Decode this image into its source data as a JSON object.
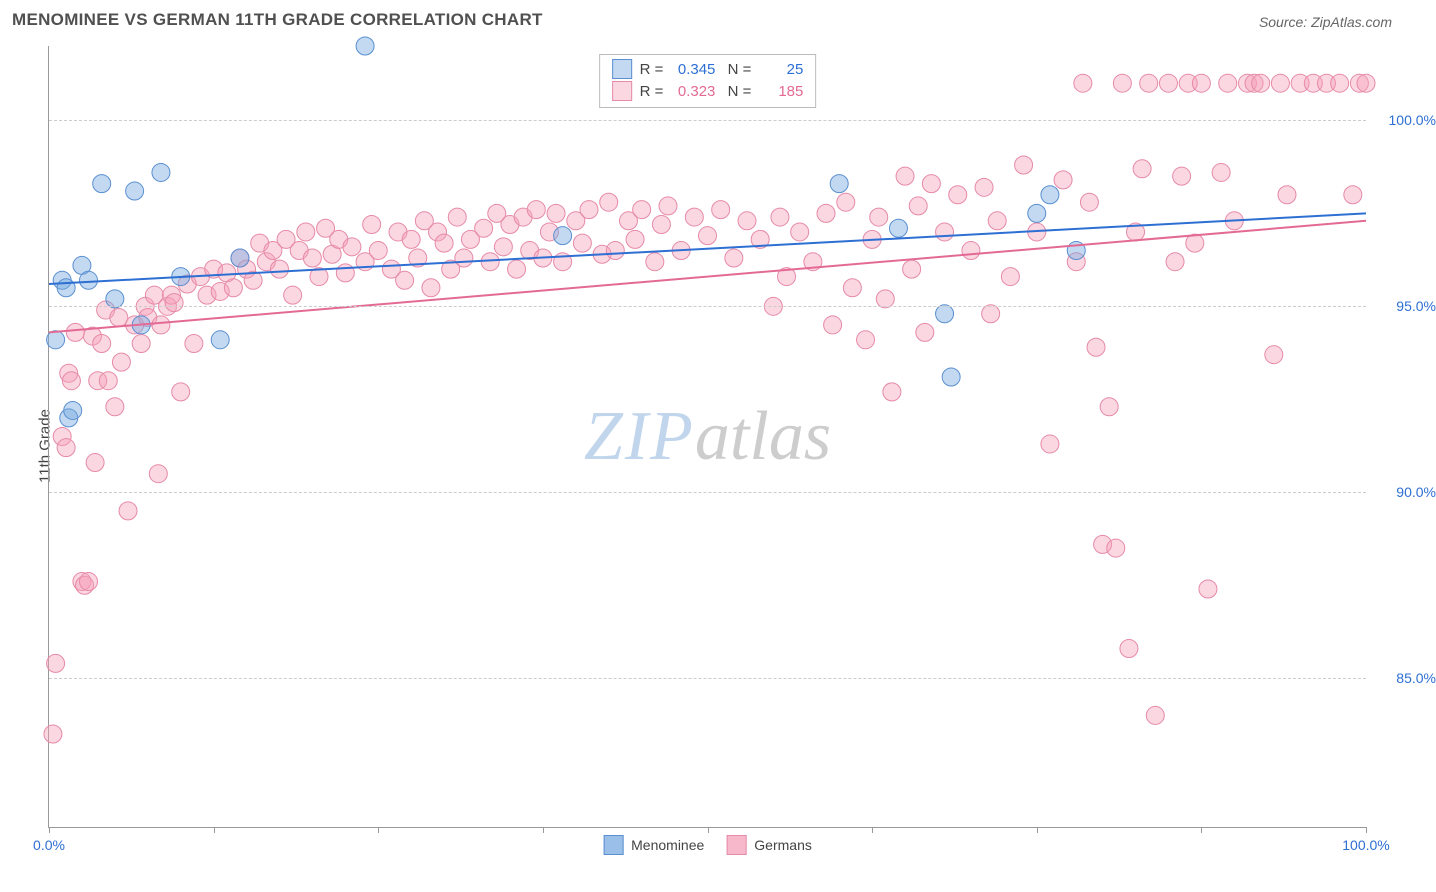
{
  "title": "MENOMINEE VS GERMAN 11TH GRADE CORRELATION CHART",
  "source_label": "Source: ZipAtlas.com",
  "y_axis_label": "11th Grade",
  "watermark": {
    "part1": "ZIP",
    "part2": "atlas"
  },
  "chart": {
    "type": "scatter",
    "background_color": "#ffffff",
    "grid_color": "#cccccc",
    "axis_color": "#999999",
    "xlim": [
      0,
      100
    ],
    "ylim": [
      81,
      102
    ],
    "x_ticks": [
      0,
      12.5,
      25,
      37.5,
      50,
      62.5,
      75,
      87.5,
      100
    ],
    "x_tick_labels": {
      "0": "0.0%",
      "100": "100.0%"
    },
    "x_label_color": "#2e6fd3",
    "y_ticks": [
      85,
      90,
      95,
      100
    ],
    "y_tick_labels": {
      "85": "85.0%",
      "90": "90.0%",
      "95": "95.0%",
      "100": "100.0%"
    },
    "y_label_color": "#2e6fd3",
    "label_fontsize": 14,
    "point_radius": 9,
    "series": [
      {
        "name": "Menominee",
        "fill": "rgba(120,170,225,0.45)",
        "stroke": "#5a8fd0",
        "trend_color": "#2e6fd3",
        "trend_width": 2,
        "R": "0.345",
        "N": "25",
        "trend": {
          "y_at_x0": 95.6,
          "y_at_x100": 97.5
        },
        "points": [
          [
            0.5,
            94.1
          ],
          [
            1.0,
            95.7
          ],
          [
            1.3,
            95.5
          ],
          [
            1.5,
            92.0
          ],
          [
            1.8,
            92.2
          ],
          [
            2.5,
            96.1
          ],
          [
            3.0,
            95.7
          ],
          [
            4.0,
            98.3
          ],
          [
            5.0,
            95.2
          ],
          [
            6.5,
            98.1
          ],
          [
            7.0,
            94.5
          ],
          [
            8.5,
            98.6
          ],
          [
            10.0,
            95.8
          ],
          [
            13.0,
            94.1
          ],
          [
            14.5,
            96.3
          ],
          [
            24.0,
            102.0
          ],
          [
            39.0,
            96.9
          ],
          [
            60.0,
            98.3
          ],
          [
            64.5,
            97.1
          ],
          [
            68.0,
            94.8
          ],
          [
            68.5,
            93.1
          ],
          [
            75.0,
            97.5
          ],
          [
            76.0,
            98.0
          ],
          [
            78.0,
            96.5
          ]
        ]
      },
      {
        "name": "Germans",
        "fill": "rgba(245,160,185,0.42)",
        "stroke": "#e68aa8",
        "trend_color": "#e36a94",
        "trend_width": 2,
        "R": "0.323",
        "N": "185",
        "trend": {
          "y_at_x0": 94.3,
          "y_at_x100": 97.3
        },
        "points": [
          [
            0.3,
            83.5
          ],
          [
            0.5,
            85.4
          ],
          [
            1.0,
            91.5
          ],
          [
            1.3,
            91.2
          ],
          [
            1.5,
            93.2
          ],
          [
            1.7,
            93.0
          ],
          [
            2.0,
            94.3
          ],
          [
            2.5,
            87.6
          ],
          [
            2.7,
            87.5
          ],
          [
            3.0,
            87.6
          ],
          [
            3.3,
            94.2
          ],
          [
            3.5,
            90.8
          ],
          [
            3.7,
            93.0
          ],
          [
            4.0,
            94.0
          ],
          [
            4.3,
            94.9
          ],
          [
            4.5,
            93.0
          ],
          [
            5.0,
            92.3
          ],
          [
            5.3,
            94.7
          ],
          [
            5.5,
            93.5
          ],
          [
            6.0,
            89.5
          ],
          [
            6.5,
            94.5
          ],
          [
            7.0,
            94.0
          ],
          [
            7.3,
            95.0
          ],
          [
            7.5,
            94.7
          ],
          [
            8.0,
            95.3
          ],
          [
            8.3,
            90.5
          ],
          [
            8.5,
            94.5
          ],
          [
            9.0,
            95.0
          ],
          [
            9.3,
            95.3
          ],
          [
            9.5,
            95.1
          ],
          [
            10.0,
            92.7
          ],
          [
            10.5,
            95.6
          ],
          [
            11.0,
            94.0
          ],
          [
            11.5,
            95.8
          ],
          [
            12.0,
            95.3
          ],
          [
            12.5,
            96.0
          ],
          [
            13.0,
            95.4
          ],
          [
            13.5,
            95.9
          ],
          [
            14.0,
            95.5
          ],
          [
            14.5,
            96.3
          ],
          [
            15.0,
            96.0
          ],
          [
            15.5,
            95.7
          ],
          [
            16.0,
            96.7
          ],
          [
            16.5,
            96.2
          ],
          [
            17.0,
            96.5
          ],
          [
            17.5,
            96.0
          ],
          [
            18.0,
            96.8
          ],
          [
            18.5,
            95.3
          ],
          [
            19.0,
            96.5
          ],
          [
            19.5,
            97.0
          ],
          [
            20.0,
            96.3
          ],
          [
            20.5,
            95.8
          ],
          [
            21.0,
            97.1
          ],
          [
            21.5,
            96.4
          ],
          [
            22.0,
            96.8
          ],
          [
            22.5,
            95.9
          ],
          [
            23.0,
            96.6
          ],
          [
            24.0,
            96.2
          ],
          [
            24.5,
            97.2
          ],
          [
            25.0,
            96.5
          ],
          [
            26.0,
            96.0
          ],
          [
            26.5,
            97.0
          ],
          [
            27.0,
            95.7
          ],
          [
            27.5,
            96.8
          ],
          [
            28.0,
            96.3
          ],
          [
            28.5,
            97.3
          ],
          [
            29.0,
            95.5
          ],
          [
            29.5,
            97.0
          ],
          [
            30.0,
            96.7
          ],
          [
            30.5,
            96.0
          ],
          [
            31.0,
            97.4
          ],
          [
            31.5,
            96.3
          ],
          [
            32.0,
            96.8
          ],
          [
            33.0,
            97.1
          ],
          [
            33.5,
            96.2
          ],
          [
            34.0,
            97.5
          ],
          [
            34.5,
            96.6
          ],
          [
            35.0,
            97.2
          ],
          [
            35.5,
            96.0
          ],
          [
            36.0,
            97.4
          ],
          [
            36.5,
            96.5
          ],
          [
            37.0,
            97.6
          ],
          [
            37.5,
            96.3
          ],
          [
            38.0,
            97.0
          ],
          [
            38.5,
            97.5
          ],
          [
            39.0,
            96.2
          ],
          [
            40.0,
            97.3
          ],
          [
            40.5,
            96.7
          ],
          [
            41.0,
            97.6
          ],
          [
            42.0,
            96.4
          ],
          [
            42.5,
            97.8
          ],
          [
            43.0,
            96.5
          ],
          [
            44.0,
            97.3
          ],
          [
            44.5,
            96.8
          ],
          [
            45.0,
            97.6
          ],
          [
            46.0,
            96.2
          ],
          [
            46.5,
            97.2
          ],
          [
            47.0,
            97.7
          ],
          [
            48.0,
            96.5
          ],
          [
            49.0,
            97.4
          ],
          [
            50.0,
            96.9
          ],
          [
            51.0,
            97.6
          ],
          [
            52.0,
            96.3
          ],
          [
            53.0,
            97.3
          ],
          [
            54.0,
            96.8
          ],
          [
            55.0,
            95.0
          ],
          [
            55.5,
            97.4
          ],
          [
            56.0,
            95.8
          ],
          [
            57.0,
            97.0
          ],
          [
            58.0,
            96.2
          ],
          [
            59.0,
            97.5
          ],
          [
            59.5,
            94.5
          ],
          [
            60.5,
            97.8
          ],
          [
            61.0,
            95.5
          ],
          [
            62.0,
            94.1
          ],
          [
            62.5,
            96.8
          ],
          [
            63.0,
            97.4
          ],
          [
            63.5,
            95.2
          ],
          [
            64.0,
            92.7
          ],
          [
            65.0,
            98.5
          ],
          [
            65.5,
            96.0
          ],
          [
            66.0,
            97.7
          ],
          [
            66.5,
            94.3
          ],
          [
            67.0,
            98.3
          ],
          [
            68.0,
            97.0
          ],
          [
            69.0,
            98.0
          ],
          [
            70.0,
            96.5
          ],
          [
            71.0,
            98.2
          ],
          [
            71.5,
            94.8
          ],
          [
            72.0,
            97.3
          ],
          [
            73.0,
            95.8
          ],
          [
            74.0,
            98.8
          ],
          [
            75.0,
            97.0
          ],
          [
            76.0,
            91.3
          ],
          [
            77.0,
            98.4
          ],
          [
            78.0,
            96.2
          ],
          [
            78.5,
            101.0
          ],
          [
            79.0,
            97.8
          ],
          [
            79.5,
            93.9
          ],
          [
            80.0,
            88.6
          ],
          [
            80.5,
            92.3
          ],
          [
            81.0,
            88.5
          ],
          [
            81.5,
            101.0
          ],
          [
            82.0,
            85.8
          ],
          [
            82.5,
            97.0
          ],
          [
            83.0,
            98.7
          ],
          [
            83.5,
            101.0
          ],
          [
            84.0,
            84.0
          ],
          [
            85.0,
            101.0
          ],
          [
            85.5,
            96.2
          ],
          [
            86.0,
            98.5
          ],
          [
            86.5,
            101.0
          ],
          [
            87.0,
            96.7
          ],
          [
            87.5,
            101.0
          ],
          [
            88.0,
            87.4
          ],
          [
            89.0,
            98.6
          ],
          [
            89.5,
            101.0
          ],
          [
            90.0,
            97.3
          ],
          [
            91.0,
            101.0
          ],
          [
            91.5,
            101.0
          ],
          [
            92.0,
            101.0
          ],
          [
            93.0,
            93.7
          ],
          [
            93.5,
            101.0
          ],
          [
            94.0,
            98.0
          ],
          [
            95.0,
            101.0
          ],
          [
            96.0,
            101.0
          ],
          [
            97.0,
            101.0
          ],
          [
            98.0,
            101.0
          ],
          [
            99.0,
            98.0
          ],
          [
            99.5,
            101.0
          ],
          [
            100.0,
            101.0
          ]
        ]
      }
    ]
  },
  "legend_bottom": [
    {
      "label": "Menominee",
      "fill": "rgba(120,170,225,0.75)",
      "stroke": "#5a8fd0"
    },
    {
      "label": "Germans",
      "fill": "rgba(245,160,185,0.75)",
      "stroke": "#e68aa8"
    }
  ]
}
